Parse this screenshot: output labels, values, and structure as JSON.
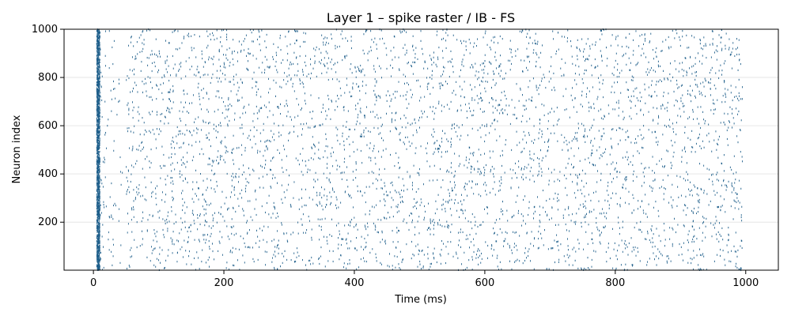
{
  "chart_data": {
    "type": "scatter",
    "title": "Layer 1 – spike raster / IB - FS",
    "xlabel": "Time (ms)",
    "ylabel": "Neuron index",
    "xlim": [
      -45,
      1050
    ],
    "ylim": [
      1,
      1000
    ],
    "xticks": [
      0,
      200,
      400,
      600,
      800,
      1000
    ],
    "yticks": [
      200,
      400,
      600,
      800,
      1000
    ],
    "grid": "horizontal",
    "marker_color": "#1f5f8b",
    "grid_color": "#e6e6e6",
    "series": [
      {
        "description_type": "dense synchronous onset burst",
        "time_range_ms": [
          5,
          10
        ],
        "neuron_range": [
          1,
          1000
        ],
        "approx_spike_count": 1400
      },
      {
        "description_type": "early sparse firing",
        "time_range_ms": [
          10,
          45
        ],
        "neuron_range": [
          1,
          1000
        ],
        "approx_spike_count": 90
      },
      {
        "description_type": "irregular asynchronous spiking",
        "time_range_ms": [
          50,
          995
        ],
        "neuron_range": [
          1,
          1000
        ],
        "approx_spike_count": 4200
      }
    ]
  }
}
